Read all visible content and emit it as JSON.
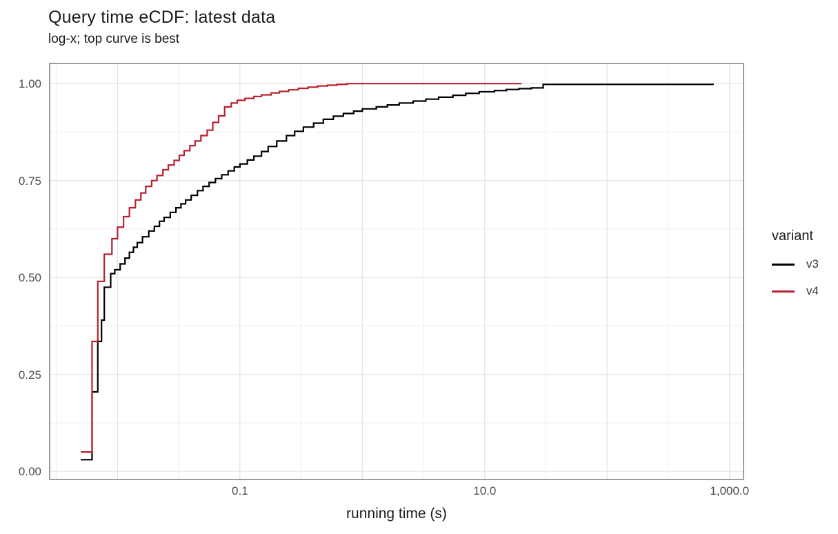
{
  "page": {
    "title": "Query time eCDF: latest data",
    "subtitle": "log-x; top curve is best"
  },
  "chart_data": {
    "type": "line",
    "variant": "ecdf-step",
    "title": "Query time eCDF: latest data",
    "subtitle": "log-x; top curve is best",
    "xlabel": "running time (s)",
    "ylabel": "",
    "x_scale": "log10",
    "xlim": [
      0.00279,
      1300
    ],
    "ylim": [
      -0.021,
      1.052
    ],
    "grid": true,
    "x_ticks": [
      {
        "v": 0.1,
        "label": "0.1"
      },
      {
        "v": 10,
        "label": "10.0"
      },
      {
        "v": 1000,
        "label": "1,000.0"
      }
    ],
    "x_major_gridlines": [
      0.01,
      0.1,
      1,
      10,
      100,
      1000
    ],
    "x_minor_gridlines": [
      0.00316,
      0.0316,
      0.316,
      3.16,
      31.6,
      316
    ],
    "y_ticks": [
      {
        "v": 0.0,
        "label": "0.00"
      },
      {
        "v": 0.25,
        "label": "0.25"
      },
      {
        "v": 0.5,
        "label": "0.50"
      },
      {
        "v": 0.75,
        "label": "0.75"
      },
      {
        "v": 1.0,
        "label": "1.00"
      }
    ],
    "y_minor_gridlines": [
      0.125,
      0.375,
      0.625,
      0.875
    ],
    "legend": {
      "title": "variant",
      "position": "right"
    },
    "series": [
      {
        "name": "v3",
        "color": "#000000",
        "points": [
          [
            0.005,
            0.03
          ],
          [
            0.0062,
            0.205
          ],
          [
            0.0069,
            0.335
          ],
          [
            0.0074,
            0.39
          ],
          [
            0.0078,
            0.475
          ],
          [
            0.0088,
            0.51
          ],
          [
            0.0095,
            0.52
          ],
          [
            0.0105,
            0.535
          ],
          [
            0.0115,
            0.55
          ],
          [
            0.0125,
            0.565
          ],
          [
            0.0135,
            0.578
          ],
          [
            0.0145,
            0.59
          ],
          [
            0.016,
            0.605
          ],
          [
            0.018,
            0.62
          ],
          [
            0.02,
            0.632
          ],
          [
            0.022,
            0.645
          ],
          [
            0.024,
            0.655
          ],
          [
            0.027,
            0.668
          ],
          [
            0.03,
            0.68
          ],
          [
            0.033,
            0.69
          ],
          [
            0.036,
            0.7
          ],
          [
            0.04,
            0.712
          ],
          [
            0.045,
            0.724
          ],
          [
            0.05,
            0.735
          ],
          [
            0.056,
            0.745
          ],
          [
            0.063,
            0.755
          ],
          [
            0.071,
            0.765
          ],
          [
            0.08,
            0.775
          ],
          [
            0.09,
            0.785
          ],
          [
            0.1,
            0.793
          ],
          [
            0.115,
            0.803
          ],
          [
            0.13,
            0.813
          ],
          [
            0.15,
            0.825
          ],
          [
            0.17,
            0.838
          ],
          [
            0.2,
            0.852
          ],
          [
            0.24,
            0.866
          ],
          [
            0.28,
            0.877
          ],
          [
            0.33,
            0.888
          ],
          [
            0.4,
            0.898
          ],
          [
            0.48,
            0.908
          ],
          [
            0.58,
            0.916
          ],
          [
            0.7,
            0.923
          ],
          [
            0.85,
            0.929
          ],
          [
            1.0,
            0.935
          ],
          [
            1.3,
            0.94
          ],
          [
            1.6,
            0.945
          ],
          [
            2.0,
            0.95
          ],
          [
            2.6,
            0.955
          ],
          [
            3.3,
            0.96
          ],
          [
            4.2,
            0.965
          ],
          [
            5.5,
            0.97
          ],
          [
            7.0,
            0.975
          ],
          [
            9.0,
            0.979
          ],
          [
            12,
            0.982
          ],
          [
            15,
            0.985
          ],
          [
            19,
            0.987
          ],
          [
            24,
            0.989
          ],
          [
            30,
            0.998
          ],
          [
            733,
            1.0
          ]
        ]
      },
      {
        "name": "v4",
        "color": "#B8202E",
        "points": [
          [
            0.005,
            0.05
          ],
          [
            0.0062,
            0.335
          ],
          [
            0.0069,
            0.49
          ],
          [
            0.0078,
            0.56
          ],
          [
            0.009,
            0.6
          ],
          [
            0.01,
            0.63
          ],
          [
            0.0112,
            0.657
          ],
          [
            0.0125,
            0.68
          ],
          [
            0.014,
            0.7
          ],
          [
            0.0155,
            0.718
          ],
          [
            0.017,
            0.735
          ],
          [
            0.019,
            0.75
          ],
          [
            0.021,
            0.763
          ],
          [
            0.0235,
            0.778
          ],
          [
            0.026,
            0.79
          ],
          [
            0.029,
            0.802
          ],
          [
            0.032,
            0.815
          ],
          [
            0.035,
            0.827
          ],
          [
            0.039,
            0.84
          ],
          [
            0.043,
            0.852
          ],
          [
            0.048,
            0.866
          ],
          [
            0.054,
            0.88
          ],
          [
            0.06,
            0.9
          ],
          [
            0.067,
            0.917
          ],
          [
            0.075,
            0.94
          ],
          [
            0.085,
            0.95
          ],
          [
            0.095,
            0.957
          ],
          [
            0.11,
            0.962
          ],
          [
            0.13,
            0.967
          ],
          [
            0.15,
            0.971
          ],
          [
            0.18,
            0.976
          ],
          [
            0.21,
            0.98
          ],
          [
            0.25,
            0.984
          ],
          [
            0.3,
            0.988
          ],
          [
            0.36,
            0.991
          ],
          [
            0.43,
            0.994
          ],
          [
            0.52,
            0.996
          ],
          [
            0.62,
            0.998
          ],
          [
            0.75,
            1.0
          ],
          [
            20,
            1.0
          ]
        ]
      }
    ]
  },
  "style": {
    "panel_border": "#858585",
    "grid_major": "#e3e3e3",
    "grid_minor": "#f0f0f0",
    "tick_text": "#4d4d4d"
  }
}
